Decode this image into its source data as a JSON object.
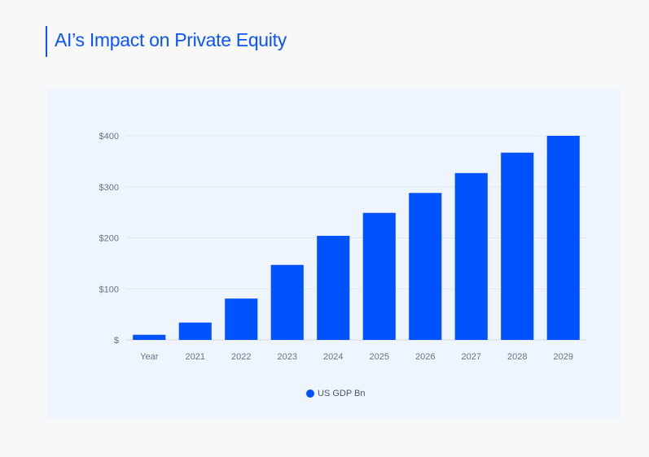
{
  "title": "AI’s Impact on Private Equity",
  "chart_data": {
    "type": "bar",
    "title": "AI’s Impact on Private Equity",
    "categories": [
      "Year",
      "2021",
      "2022",
      "2023",
      "2024",
      "2025",
      "2026",
      "2027",
      "2028",
      "2029"
    ],
    "series": [
      {
        "name": "US GDP Bn",
        "values": [
          10,
          34,
          81,
          147,
          204,
          249,
          288,
          327,
          367,
          400
        ],
        "color": "#0052ff"
      }
    ],
    "yticks": [
      0,
      100,
      200,
      300,
      400
    ],
    "ytick_labels": [
      "$",
      "$100",
      "$200",
      "$300",
      "$400"
    ],
    "ylim": [
      0,
      400
    ],
    "xlabel": "",
    "ylabel": "",
    "grid": true,
    "legend": "bottom-center"
  }
}
